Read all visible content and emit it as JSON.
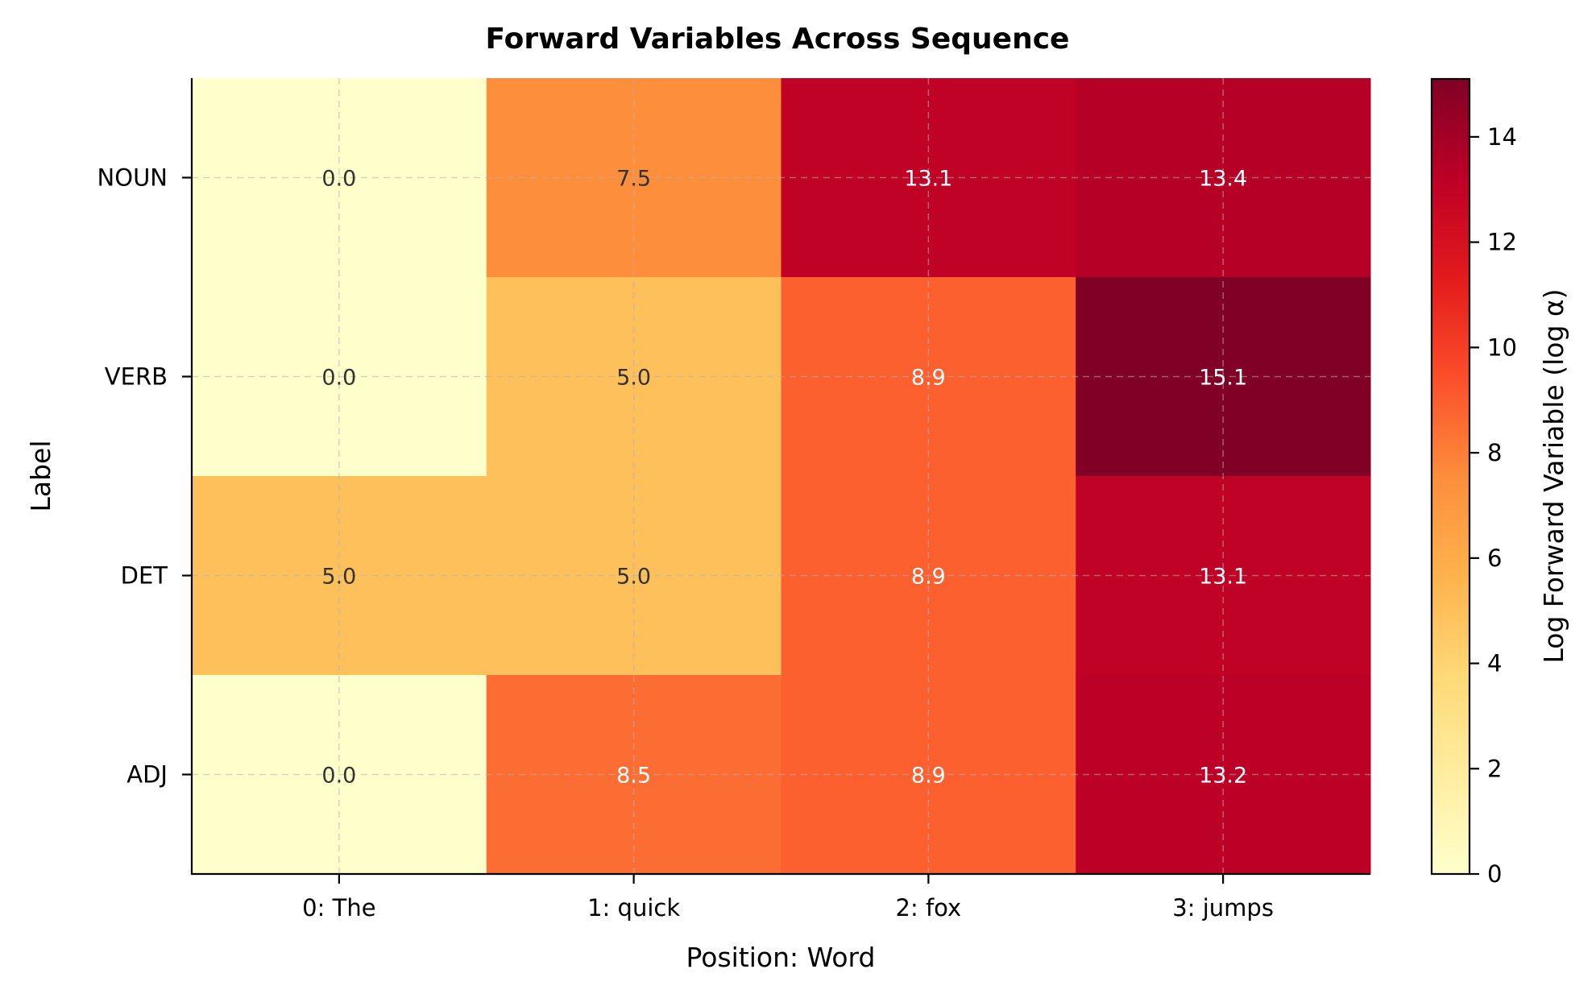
{
  "chart_data": {
    "type": "heatmap",
    "title": "Forward Variables Across Sequence",
    "xlabel": "Position: Word",
    "ylabel": "Label",
    "x_categories": [
      "0: The",
      "1: quick",
      "2: fox",
      "3: jumps"
    ],
    "y_categories": [
      "NOUN",
      "VERB",
      "DET",
      "ADJ"
    ],
    "values": [
      [
        0.0,
        7.5,
        13.1,
        13.4
      ],
      [
        0.0,
        5.0,
        8.9,
        15.1
      ],
      [
        5.0,
        5.0,
        8.9,
        13.1
      ],
      [
        0.0,
        8.5,
        8.9,
        13.2
      ]
    ],
    "value_labels": [
      [
        "0.0",
        "7.5",
        "13.1",
        "13.4"
      ],
      [
        "0.0",
        "5.0",
        "8.9",
        "15.1"
      ],
      [
        "5.0",
        "5.0",
        "8.9",
        "13.1"
      ],
      [
        "0.0",
        "8.5",
        "8.9",
        "13.2"
      ]
    ],
    "colormap": "YlOrRd",
    "vmin": 0,
    "vmax": 15.1,
    "grid": true,
    "colorbar": {
      "label": "Log Forward Variable (log α)",
      "ticks": [
        0,
        2,
        4,
        6,
        8,
        10,
        12,
        14
      ],
      "tick_labels": [
        "0",
        "2",
        "4",
        "6",
        "8",
        "10",
        "12",
        "14"
      ]
    }
  }
}
